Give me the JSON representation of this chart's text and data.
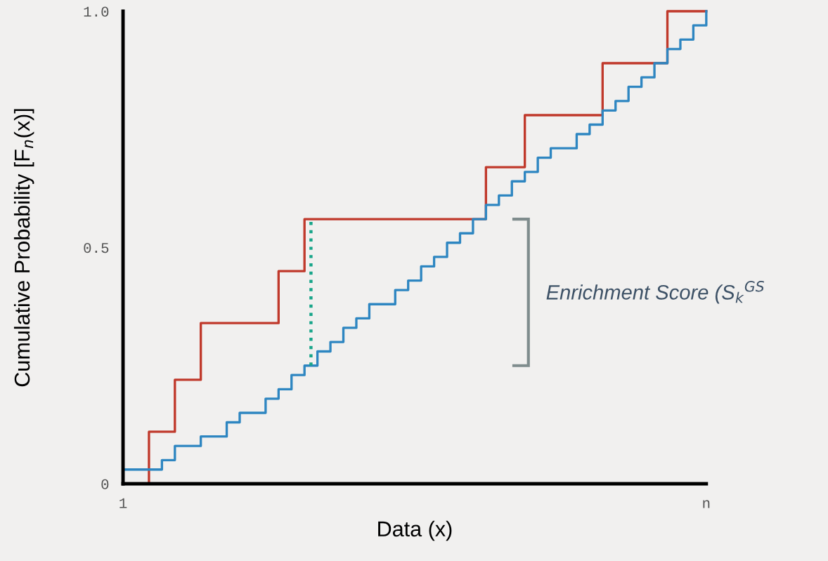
{
  "chart_data": {
    "type": "step",
    "xlabel": "Data (x)",
    "ylabel": "Cumulative Probability [F$_{n}$(x)]",
    "categories": [
      "1",
      null,
      null,
      null,
      null,
      null,
      null,
      null,
      null,
      null,
      null,
      null,
      null,
      null,
      null,
      null,
      null,
      null,
      null,
      null,
      null,
      null,
      null,
      null,
      null,
      null,
      null,
      null,
      null,
      null,
      null,
      null,
      null,
      null,
      null,
      null,
      null,
      null,
      null,
      null,
      null,
      null,
      null,
      null,
      null,
      "n"
    ],
    "ylim": [
      0,
      1.0
    ],
    "yticks": [
      0,
      0.5,
      {
        "value": 1.0,
        "label": "1.0"
      }
    ],
    "grid": false,
    "legend": false,
    "marker": "none",
    "series": [
      {
        "color": "#c0392b",
        "values": [
          0,
          0,
          0.11,
          0.11,
          0.22,
          0.22,
          0.34,
          0.34,
          0.34,
          0.34,
          0.34,
          0.34,
          0.45,
          0.45,
          0.56,
          0.56,
          0.56,
          0.56,
          0.56,
          0.56,
          0.56,
          0.56,
          0.56,
          0.56,
          0.56,
          0.56,
          0.56,
          0.56,
          0.67,
          0.67,
          0.67,
          0.78,
          0.78,
          0.78,
          0.78,
          0.78,
          0.78,
          0.89,
          0.89,
          0.89,
          0.89,
          0.89,
          1.0,
          1.0,
          1.0,
          1.0
        ]
      },
      {
        "color": "#2e86c1",
        "values": [
          0.03,
          0.03,
          0.03,
          0.05,
          0.08,
          0.08,
          0.1,
          0.1,
          0.13,
          0.15,
          0.15,
          0.18,
          0.2,
          0.23,
          0.25,
          0.28,
          0.3,
          0.33,
          0.35,
          0.38,
          0.38,
          0.41,
          0.43,
          0.46,
          0.48,
          0.51,
          0.53,
          0.56,
          0.59,
          0.61,
          0.64,
          0.66,
          0.69,
          0.71,
          0.71,
          0.74,
          0.76,
          0.79,
          0.81,
          0.84,
          0.86,
          0.89,
          0.92,
          0.94,
          0.97,
          1.0
        ]
      }
    ],
    "annotations": [
      "Enrichment Score (S$_{k}$$^{GS}$"
    ]
  }
}
